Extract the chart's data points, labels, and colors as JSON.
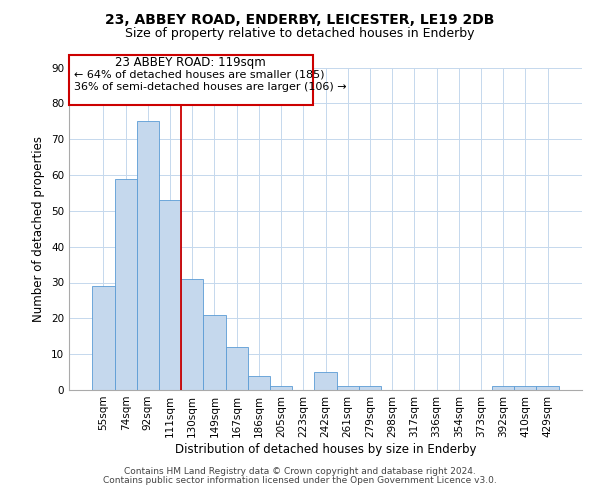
{
  "title": "23, ABBEY ROAD, ENDERBY, LEICESTER, LE19 2DB",
  "subtitle": "Size of property relative to detached houses in Enderby",
  "xlabel": "Distribution of detached houses by size in Enderby",
  "ylabel": "Number of detached properties",
  "bar_labels": [
    "55sqm",
    "74sqm",
    "92sqm",
    "111sqm",
    "130sqm",
    "149sqm",
    "167sqm",
    "186sqm",
    "205sqm",
    "223sqm",
    "242sqm",
    "261sqm",
    "279sqm",
    "298sqm",
    "317sqm",
    "336sqm",
    "354sqm",
    "373sqm",
    "392sqm",
    "410sqm",
    "429sqm"
  ],
  "bar_values": [
    29,
    59,
    75,
    53,
    31,
    21,
    12,
    4,
    1,
    0,
    5,
    1,
    1,
    0,
    0,
    0,
    0,
    0,
    1,
    1,
    1
  ],
  "bar_color": "#c5d8ed",
  "bar_edge_color": "#5b9bd5",
  "background_color": "#ffffff",
  "grid_color": "#c5d8ed",
  "ylim": [
    0,
    90
  ],
  "yticks": [
    0,
    10,
    20,
    30,
    40,
    50,
    60,
    70,
    80,
    90
  ],
  "vline_x": 3.5,
  "vline_color": "#cc0000",
  "annotation_title": "23 ABBEY ROAD: 119sqm",
  "annotation_line1": "← 64% of detached houses are smaller (185)",
  "annotation_line2": "36% of semi-detached houses are larger (106) →",
  "annotation_box_color": "#ffffff",
  "annotation_box_edge": "#cc0000",
  "footer_line1": "Contains HM Land Registry data © Crown copyright and database right 2024.",
  "footer_line2": "Contains public sector information licensed under the Open Government Licence v3.0.",
  "title_fontsize": 10,
  "subtitle_fontsize": 9,
  "axis_label_fontsize": 8.5,
  "tick_fontsize": 7.5,
  "annotation_title_fontsize": 8.5,
  "annotation_text_fontsize": 8,
  "footer_fontsize": 6.5
}
